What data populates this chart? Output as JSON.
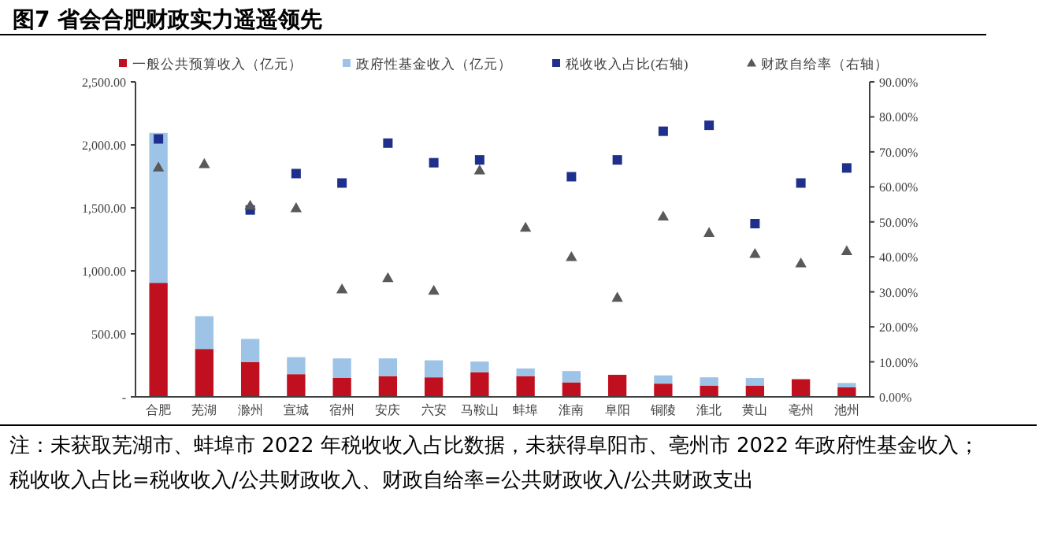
{
  "chart_data": {
    "type": "bar",
    "title": "图7 省会合肥财政实力遥遥领先",
    "stacked": true,
    "categories": [
      "合肥",
      "芜湖",
      "滁州",
      "宣城",
      "宿州",
      "安庆",
      "六安",
      "马鞍山",
      "蚌埠",
      "淮南",
      "阜阳",
      "铜陵",
      "淮北",
      "黄山",
      "亳州",
      "池州"
    ],
    "series": [
      {
        "name": "一般公共预算收入（亿元）",
        "color": "#c00f1e",
        "values": [
          905,
          380,
          275,
          180,
          150,
          165,
          155,
          195,
          165,
          115,
          175,
          105,
          90,
          90,
          140,
          75
        ]
      },
      {
        "name": "政府性基金收入（亿元）",
        "color": "#9dc3e6",
        "values": [
          1190,
          260,
          185,
          135,
          155,
          140,
          135,
          85,
          60,
          90,
          null,
          65,
          65,
          60,
          null,
          35
        ]
      },
      {
        "name": "税收收入占比(右轴)",
        "type": "scatter",
        "axis": "y2",
        "marker": "square",
        "color": "#1f2f8c",
        "values": [
          73.7,
          null,
          53.4,
          63.8,
          61.1,
          72.5,
          66.9,
          67.7,
          null,
          62.9,
          67.7,
          75.9,
          77.6,
          49.5,
          61.1,
          65.4
        ]
      },
      {
        "name": "财政自给率（右轴）",
        "type": "scatter",
        "axis": "y2",
        "marker": "triangle",
        "color": "#595959",
        "values": [
          65.6,
          66.6,
          54.7,
          54.0,
          30.8,
          34.0,
          30.4,
          64.8,
          48.4,
          40.0,
          28.4,
          51.6,
          46.9,
          40.9,
          38.2,
          41.7
        ]
      }
    ],
    "ylim": [
      0,
      2500
    ],
    "yticks": [
      {
        "value": 0,
        "label": "-"
      },
      {
        "value": 500,
        "label": "500.00"
      },
      {
        "value": 1000,
        "label": "1,000.00"
      },
      {
        "value": 1500,
        "label": "1,500.00"
      },
      {
        "value": 2000,
        "label": "2,000.00"
      },
      {
        "value": 2500,
        "label": "2,500.00"
      }
    ],
    "y2lim": [
      0,
      90
    ],
    "y2ticks": [
      {
        "value": 0,
        "label": "0.00%"
      },
      {
        "value": 10,
        "label": "10.00%"
      },
      {
        "value": 20,
        "label": "20.00%"
      },
      {
        "value": 30,
        "label": "30.00%"
      },
      {
        "value": 40,
        "label": "40.00%"
      },
      {
        "value": 50,
        "label": "50.00%"
      },
      {
        "value": 60,
        "label": "60.00%"
      },
      {
        "value": 70,
        "label": "70.00%"
      },
      {
        "value": 80,
        "label": "80.00%"
      },
      {
        "value": 90,
        "label": "90.00%"
      }
    ],
    "legend": "top",
    "grid": false,
    "annotations": [
      "注：未获取芜湖市、蚌埠市 2022 年税收收入占比数据，未获得阜阳市、亳州市 2022 年政府性基金收入；税收收入占比=税收收入/公共财政收入、财政自给率=公共财政收入/公共财政支出"
    ]
  }
}
